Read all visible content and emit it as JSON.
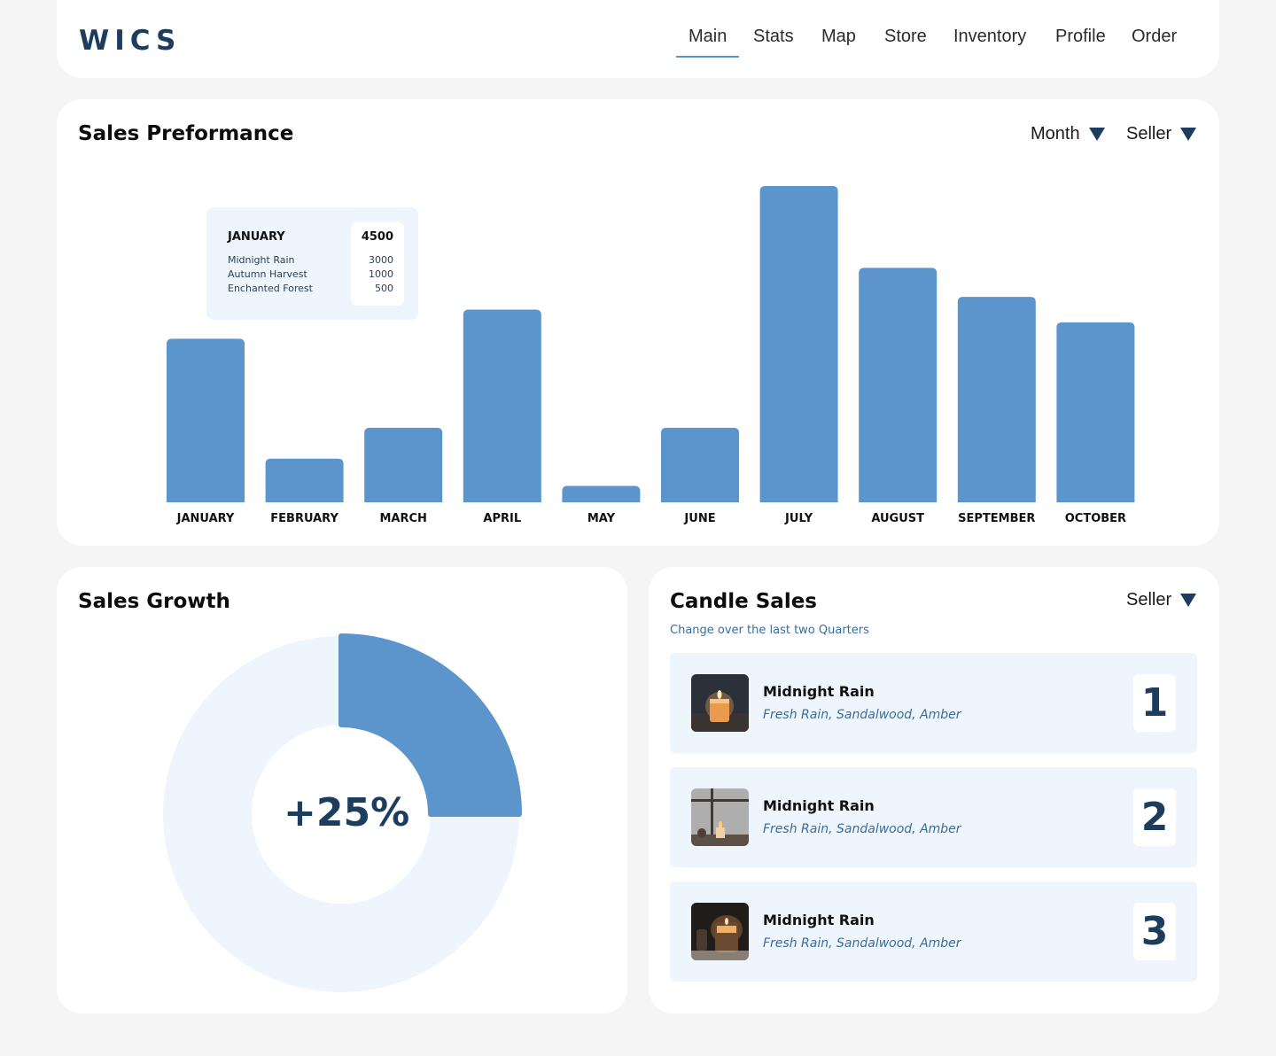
{
  "header": {
    "logo": "WICS",
    "nav": [
      "Main",
      "Stats",
      "Map",
      "Store",
      "Inventory",
      "Profile",
      "Order"
    ],
    "active_nav": "Main"
  },
  "performance": {
    "title": "Sales Preformance",
    "filter_month": "Month",
    "filter_seller": "Seller",
    "tooltip": {
      "month": "JANUARY",
      "total": "4500",
      "rows": [
        {
          "name": "Midnight Rain",
          "value": "3000"
        },
        {
          "name": "Autumn Harvest",
          "value": "1000"
        },
        {
          "name": "Enchanted Forest",
          "value": "500"
        }
      ]
    }
  },
  "chart_data": {
    "type": "bar",
    "categories": [
      "JANUARY",
      "FEBRUARY",
      "MARCH",
      "APRIL",
      "MAY",
      "JUNE",
      "JULY",
      "AUGUST",
      "SEPTEMBER",
      "OCTOBER"
    ],
    "values": [
      4500,
      1200,
      2050,
      5300,
      450,
      2050,
      8700,
      6450,
      5650,
      4950
    ],
    "bar_color": "#5b95cb",
    "title": "",
    "xlabel": "",
    "ylabel": ""
  },
  "growth": {
    "title": "Sales Growth",
    "value_label": "+25%",
    "fraction": 0.25,
    "fill_color": "#5b95cb",
    "track_color": "#eef5fd"
  },
  "candles": {
    "title": "Candle Sales",
    "filter_seller": "Seller",
    "subtitle": "Change over the last two Quarters",
    "items": [
      {
        "name": "Midnight Rain",
        "notes": "Fresh Rain, Sandalwood, Amber",
        "rank": "1",
        "image": "candle-photo"
      },
      {
        "name": "Midnight Rain",
        "notes": "Fresh Rain, Sandalwood, Amber",
        "rank": "2",
        "image": "candle-window-photo"
      },
      {
        "name": "Midnight Rain",
        "notes": "Fresh Rain, Sandalwood, Amber",
        "rank": "3",
        "image": "candle-jar-photo"
      }
    ]
  }
}
